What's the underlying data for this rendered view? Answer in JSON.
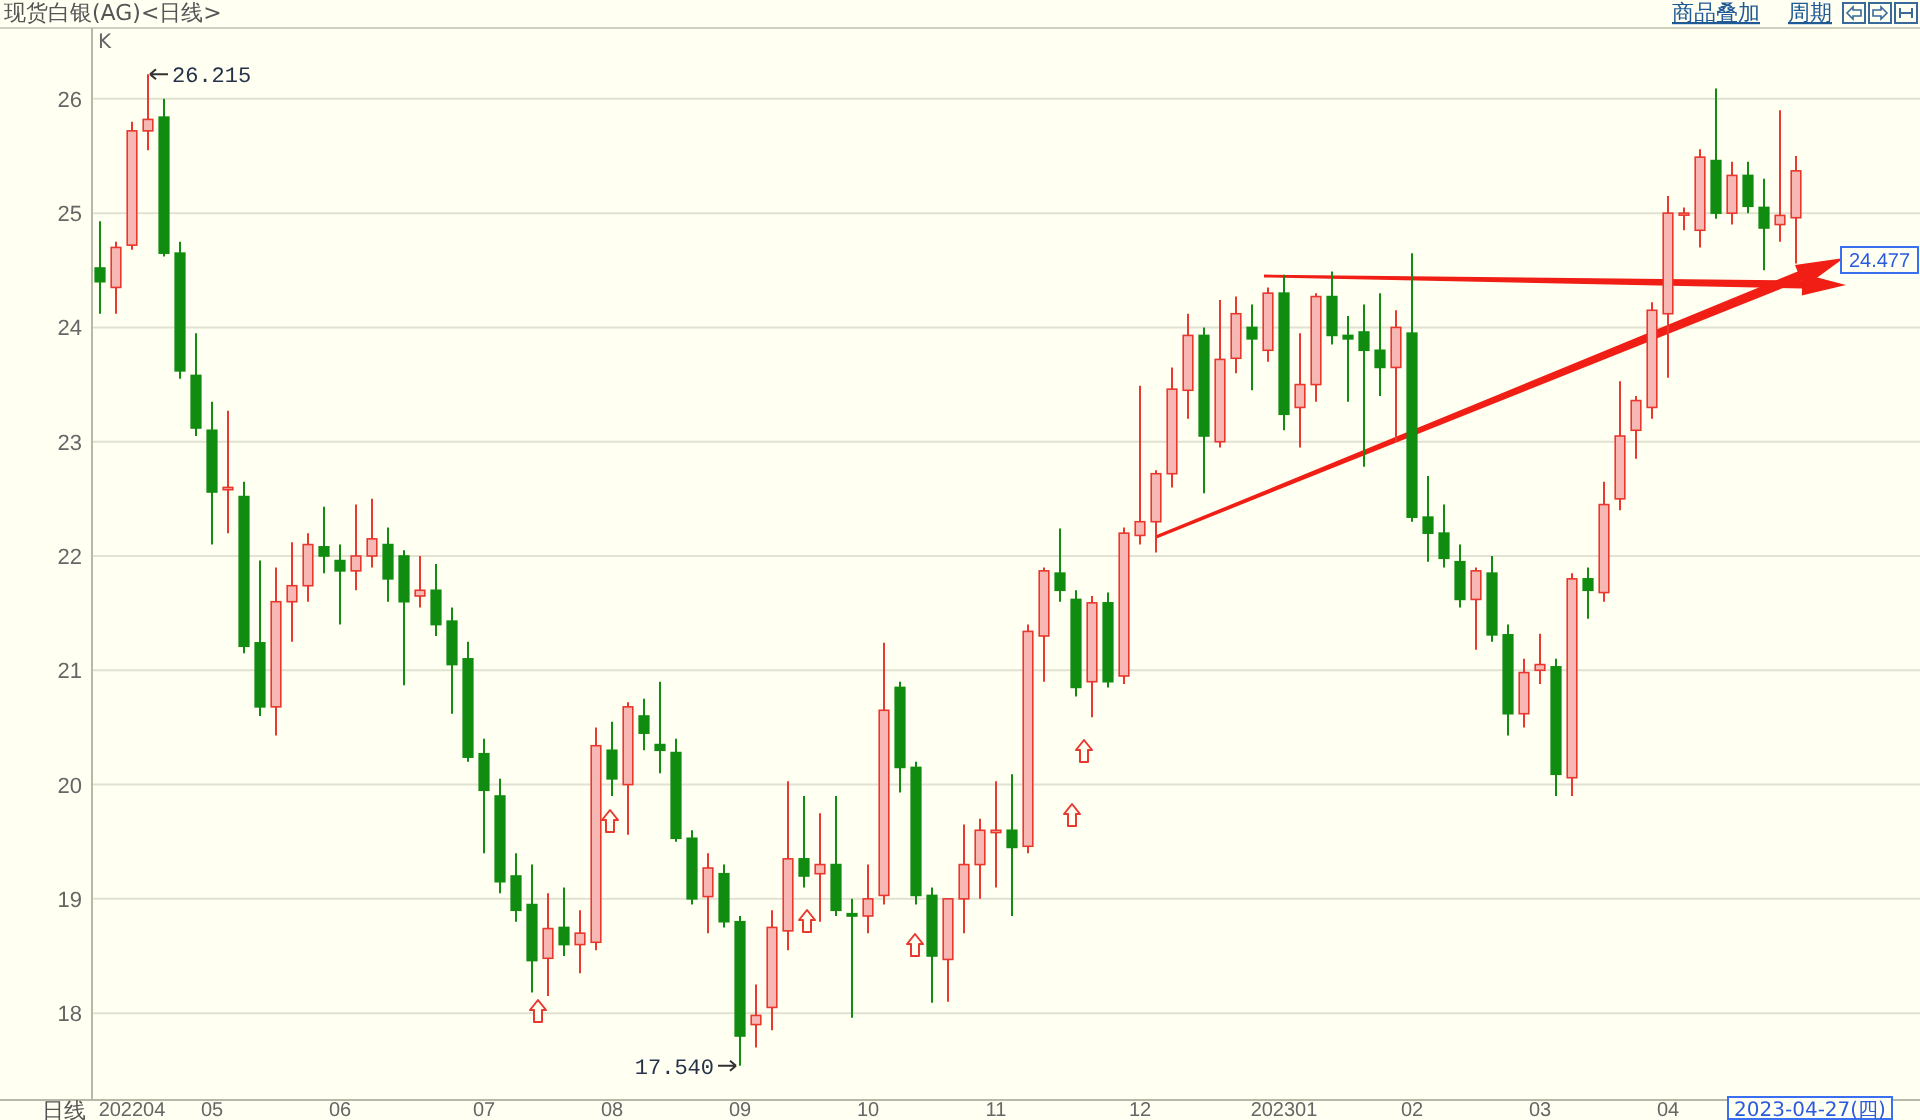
{
  "chart_data": {
    "type": "candlestick",
    "title": "现货白银(AG)<日线>",
    "xlabel": "日线",
    "ylabel": "K",
    "categories": [
      null,
      null,
      "202204",
      null,
      null,
      null,
      null,
      "05",
      null,
      null,
      null,
      null,
      null,
      null,
      null,
      "06",
      null,
      null,
      null,
      null,
      null,
      null,
      null,
      null,
      "07",
      null,
      null,
      null,
      null,
      null,
      null,
      null,
      "08",
      null,
      null,
      null,
      null,
      null,
      null,
      null,
      "09",
      null,
      null,
      null,
      null,
      null,
      null,
      null,
      "10",
      null,
      null,
      null,
      null,
      null,
      null,
      null,
      "11",
      null,
      null,
      null,
      null,
      null,
      null,
      null,
      null,
      "12",
      null,
      null,
      null,
      null,
      null,
      null,
      null,
      null,
      "202301",
      null,
      null,
      null,
      null,
      null,
      null,
      null,
      "02",
      null,
      null,
      null,
      null,
      null,
      null,
      null,
      "03",
      null,
      null,
      null,
      null,
      null,
      null,
      null,
      "04",
      null,
      null,
      null,
      null,
      null,
      null,
      null,
      null
    ],
    "ohlc": [
      [
        24.52,
        24.93,
        24.12,
        24.4
      ],
      [
        24.35,
        24.75,
        24.12,
        24.7
      ],
      [
        24.72,
        25.8,
        24.68,
        25.72
      ],
      [
        25.72,
        26.215,
        25.55,
        25.82
      ],
      [
        25.84,
        26.0,
        24.62,
        24.65
      ],
      [
        24.65,
        24.75,
        23.55,
        23.62
      ],
      [
        23.58,
        23.95,
        23.05,
        23.12
      ],
      [
        23.1,
        23.35,
        22.1,
        22.56
      ],
      [
        22.58,
        23.27,
        22.2,
        22.6
      ],
      [
        22.52,
        22.65,
        21.15,
        21.21
      ],
      [
        21.24,
        21.96,
        20.6,
        20.68
      ],
      [
        20.68,
        21.9,
        20.43,
        21.6
      ],
      [
        21.6,
        22.12,
        21.25,
        21.74
      ],
      [
        21.74,
        22.2,
        21.6,
        22.1
      ],
      [
        22.08,
        22.43,
        21.85,
        22.0
      ],
      [
        21.96,
        22.1,
        21.4,
        21.87
      ],
      [
        21.87,
        22.45,
        21.7,
        22.0
      ],
      [
        22.0,
        22.5,
        21.9,
        22.15
      ],
      [
        22.1,
        22.25,
        21.6,
        21.8
      ],
      [
        22.0,
        22.05,
        20.87,
        21.6
      ],
      [
        21.65,
        22.0,
        21.55,
        21.7
      ],
      [
        21.7,
        21.93,
        21.3,
        21.4
      ],
      [
        21.43,
        21.55,
        20.62,
        21.05
      ],
      [
        21.1,
        21.25,
        20.2,
        20.24
      ],
      [
        20.27,
        20.4,
        19.4,
        19.95
      ],
      [
        19.9,
        20.05,
        19.05,
        19.15
      ],
      [
        19.2,
        19.4,
        18.8,
        18.9
      ],
      [
        18.95,
        19.3,
        18.18,
        18.46
      ],
      [
        18.48,
        19.05,
        18.15,
        18.74
      ],
      [
        18.75,
        19.1,
        18.5,
        18.6
      ],
      [
        18.6,
        18.9,
        18.35,
        18.7
      ],
      [
        18.62,
        20.5,
        18.55,
        20.34
      ],
      [
        20.3,
        20.55,
        19.9,
        20.05
      ],
      [
        20.0,
        20.72,
        19.56,
        20.68
      ],
      [
        20.6,
        20.75,
        20.3,
        20.45
      ],
      [
        20.35,
        20.9,
        20.1,
        20.3
      ],
      [
        20.28,
        20.4,
        19.5,
        19.53
      ],
      [
        19.53,
        19.6,
        18.95,
        19.0
      ],
      [
        19.02,
        19.4,
        18.7,
        19.27
      ],
      [
        19.22,
        19.3,
        18.75,
        18.8
      ],
      [
        18.8,
        18.85,
        17.54,
        17.8
      ],
      [
        17.9,
        18.25,
        17.7,
        17.98
      ],
      [
        18.05,
        18.9,
        17.85,
        18.75
      ],
      [
        18.72,
        20.03,
        18.55,
        19.35
      ],
      [
        19.35,
        19.9,
        19.1,
        19.2
      ],
      [
        19.22,
        19.75,
        18.8,
        19.3
      ],
      [
        19.3,
        19.9,
        18.85,
        18.9
      ],
      [
        18.87,
        19.0,
        17.96,
        18.85
      ],
      [
        18.85,
        19.3,
        18.7,
        19.0
      ],
      [
        19.03,
        21.24,
        18.95,
        20.65
      ],
      [
        20.85,
        20.9,
        19.93,
        20.15
      ],
      [
        20.15,
        20.2,
        18.95,
        19.03
      ],
      [
        19.03,
        19.1,
        18.09,
        18.5
      ],
      [
        18.47,
        19.0,
        18.1,
        19.0
      ],
      [
        19.0,
        19.65,
        18.7,
        19.3
      ],
      [
        19.3,
        19.7,
        19.0,
        19.6
      ],
      [
        19.58,
        20.03,
        19.1,
        19.6
      ],
      [
        19.6,
        20.09,
        18.85,
        19.45
      ],
      [
        19.46,
        21.4,
        19.4,
        21.34
      ],
      [
        21.3,
        21.9,
        20.9,
        21.87
      ],
      [
        21.85,
        22.24,
        21.6,
        21.7
      ],
      [
        21.62,
        21.7,
        20.77,
        20.85
      ],
      [
        20.9,
        21.65,
        20.59,
        21.59
      ],
      [
        21.59,
        21.68,
        20.85,
        20.9
      ],
      [
        20.95,
        22.25,
        20.88,
        22.2
      ],
      [
        22.18,
        23.49,
        22.1,
        22.3
      ],
      [
        22.3,
        22.75,
        22.03,
        22.72
      ],
      [
        22.72,
        23.65,
        22.6,
        23.46
      ],
      [
        23.45,
        24.12,
        23.2,
        23.93
      ],
      [
        23.93,
        24.0,
        22.55,
        23.05
      ],
      [
        23.0,
        24.24,
        22.95,
        23.72
      ],
      [
        23.73,
        24.27,
        23.6,
        24.12
      ],
      [
        24.0,
        24.2,
        23.45,
        23.9
      ],
      [
        23.8,
        24.35,
        23.7,
        24.3
      ],
      [
        24.3,
        24.46,
        23.1,
        23.24
      ],
      [
        23.3,
        23.95,
        22.95,
        23.5
      ],
      [
        23.5,
        24.3,
        23.35,
        24.27
      ],
      [
        24.27,
        24.49,
        23.85,
        23.93
      ],
      [
        23.93,
        24.1,
        23.35,
        23.9
      ],
      [
        23.96,
        24.2,
        22.78,
        23.8
      ],
      [
        23.8,
        24.3,
        23.4,
        23.65
      ],
      [
        23.65,
        24.15,
        23.0,
        24.0
      ],
      [
        23.95,
        24.65,
        22.3,
        22.34
      ],
      [
        22.34,
        22.7,
        21.95,
        22.2
      ],
      [
        22.2,
        22.45,
        21.9,
        21.98
      ],
      [
        21.95,
        22.1,
        21.55,
        21.62
      ],
      [
        21.62,
        21.9,
        21.18,
        21.87
      ],
      [
        21.85,
        22.0,
        21.25,
        21.31
      ],
      [
        21.31,
        21.4,
        20.43,
        20.62
      ],
      [
        20.62,
        21.1,
        20.5,
        20.98
      ],
      [
        21.0,
        21.32,
        20.88,
        21.05
      ],
      [
        21.03,
        21.1,
        19.9,
        20.09
      ],
      [
        20.06,
        21.85,
        19.9,
        21.8
      ],
      [
        21.8,
        21.9,
        21.45,
        21.7
      ],
      [
        21.68,
        22.65,
        21.6,
        22.45
      ],
      [
        22.5,
        23.53,
        22.4,
        23.05
      ],
      [
        23.1,
        23.4,
        22.85,
        23.36
      ],
      [
        23.3,
        24.22,
        23.2,
        24.15
      ],
      [
        24.12,
        25.15,
        23.56,
        25.0
      ],
      [
        25.0,
        25.05,
        24.85,
        25.0
      ],
      [
        24.85,
        25.56,
        24.7,
        25.49
      ],
      [
        25.46,
        26.09,
        24.95,
        25.0
      ],
      [
        25.0,
        25.45,
        24.9,
        25.33
      ],
      [
        25.33,
        25.45,
        25.0,
        25.06
      ],
      [
        25.05,
        25.3,
        24.5,
        24.87
      ],
      [
        24.9,
        25.9,
        24.75,
        24.98
      ],
      [
        24.96,
        25.5,
        24.56,
        25.37
      ]
    ],
    "ylim": [
      17.24,
      26.62
    ],
    "yticks": [
      18,
      19,
      20,
      21,
      22,
      23,
      24,
      25,
      26
    ],
    "grid": "y",
    "annotations": [
      "商品叠加",
      "周期",
      "2023-04-27(四)",
      "26.215",
      "17.540",
      "24.477"
    ]
  }
}
